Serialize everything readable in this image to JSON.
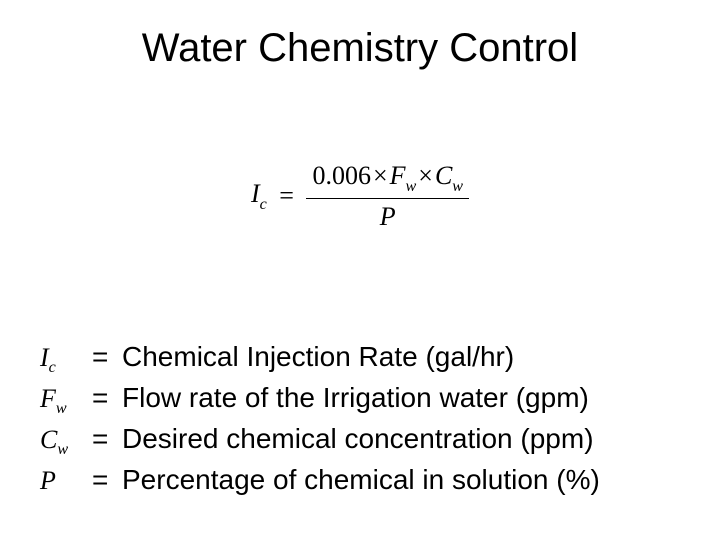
{
  "title": "Water Chemistry Control",
  "formula": {
    "lhs_var": "I",
    "lhs_sub": "c",
    "equals": "=",
    "constant": "0.006",
    "mult": "×",
    "term2_var": "F",
    "term2_sub": "w",
    "term3_var": "C",
    "term3_sub": "w",
    "denominator_var": "P"
  },
  "definitions": [
    {
      "var": "I",
      "sub": "c",
      "eq": "=",
      "desc": "Chemical Injection Rate (gal/hr)"
    },
    {
      "var": "F",
      "sub": "w",
      "eq": "=",
      "desc": "Flow rate of the Irrigation water (gpm)"
    },
    {
      "var": "C",
      "sub": "w",
      "eq": "=",
      "desc": "Desired chemical concentration (ppm)"
    },
    {
      "var": "P",
      "sub": "",
      "eq": "=",
      "desc": "Percentage of chemical in solution (%)"
    }
  ],
  "colors": {
    "background": "#ffffff",
    "text": "#000000"
  },
  "fonts": {
    "title_size_pt": 40,
    "body_size_pt": 28,
    "formula_size_pt": 26,
    "symbol_size_pt": 26,
    "title_family": "Arial",
    "body_family": "Arial",
    "math_family": "Times New Roman"
  }
}
